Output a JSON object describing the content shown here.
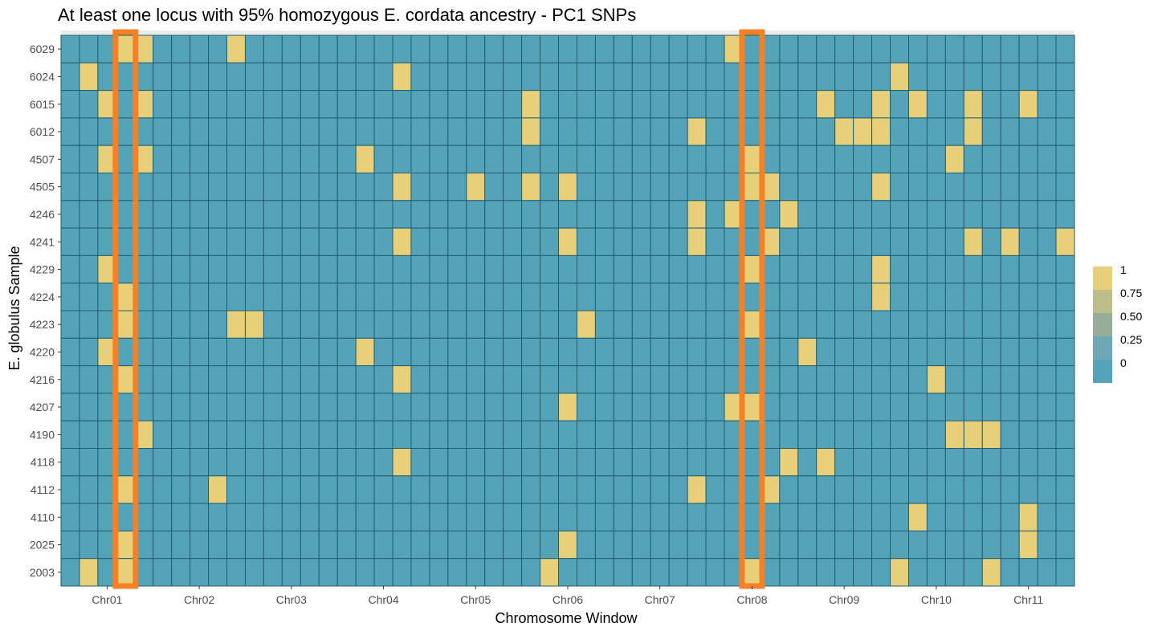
{
  "chart_data": {
    "type": "heatmap",
    "title": "At least one locus with 95% homozygous E. cordata ancestry - PC1 SNPs",
    "xlabel": "Chromosome Window",
    "ylabel": "E. globulus Sample",
    "n_windows": 55,
    "x_tick_labels": [
      "Chr01",
      "Chr02",
      "Chr03",
      "Chr04",
      "Chr05",
      "Chr06",
      "Chr07",
      "Chr08",
      "Chr09",
      "Chr10",
      "Chr11"
    ],
    "x_tick_windows": [
      3,
      8,
      13,
      18,
      23,
      28,
      33,
      38,
      43,
      48,
      53
    ],
    "samples": [
      "6029",
      "6024",
      "6015",
      "6012",
      "4507",
      "4505",
      "4246",
      "4241",
      "4229",
      "4224",
      "4223",
      "4220",
      "4216",
      "4207",
      "4190",
      "4118",
      "4112",
      "4110",
      "2025",
      "2003"
    ],
    "high_cells": {
      "6029": [
        4,
        5,
        10,
        37
      ],
      "6024": [
        2,
        19,
        46
      ],
      "6015": [
        3,
        5,
        26,
        42,
        45,
        47,
        50,
        53
      ],
      "6012": [
        26,
        35,
        43,
        44,
        45,
        50
      ],
      "4507": [
        3,
        5,
        17,
        38,
        49
      ],
      "4505": [
        19,
        23,
        26,
        28,
        38,
        39,
        45
      ],
      "4246": [
        35,
        37,
        40
      ],
      "4241": [
        19,
        28,
        35,
        39,
        50,
        52,
        55
      ],
      "4229": [
        3,
        38,
        45
      ],
      "4224": [
        4,
        45
      ],
      "4223": [
        4,
        10,
        11,
        29,
        38
      ],
      "4220": [
        3,
        17,
        41
      ],
      "4216": [
        4,
        19,
        48
      ],
      "4207": [
        28,
        37,
        38
      ],
      "4190": [
        5,
        49,
        50,
        51
      ],
      "4118": [
        19,
        40,
        42
      ],
      "4112": [
        4,
        9,
        35,
        39
      ],
      "4110": [
        47,
        53
      ],
      "2025": [
        4,
        28,
        53
      ],
      "2003": [
        2,
        4,
        27,
        38,
        46,
        51
      ]
    },
    "high_value": 1,
    "low_value": 0,
    "legend": {
      "position": "right",
      "labels": [
        "1",
        "0.75",
        "0.50",
        "0.25",
        "0"
      ],
      "values": [
        1,
        0.75,
        0.5,
        0.25,
        0
      ],
      "colors": [
        "#e8d07a",
        "#bdbe8a",
        "#97ad9b",
        "#6ea7b5",
        "#55a3b9"
      ]
    },
    "highlighted_windows": [
      4,
      38
    ],
    "colors": {
      "high": "#e8d07a",
      "low": "#55a3b9",
      "cell_border": "#1f5f70",
      "highlight": "#f58025",
      "panel_bg": "#ebebeb"
    }
  }
}
